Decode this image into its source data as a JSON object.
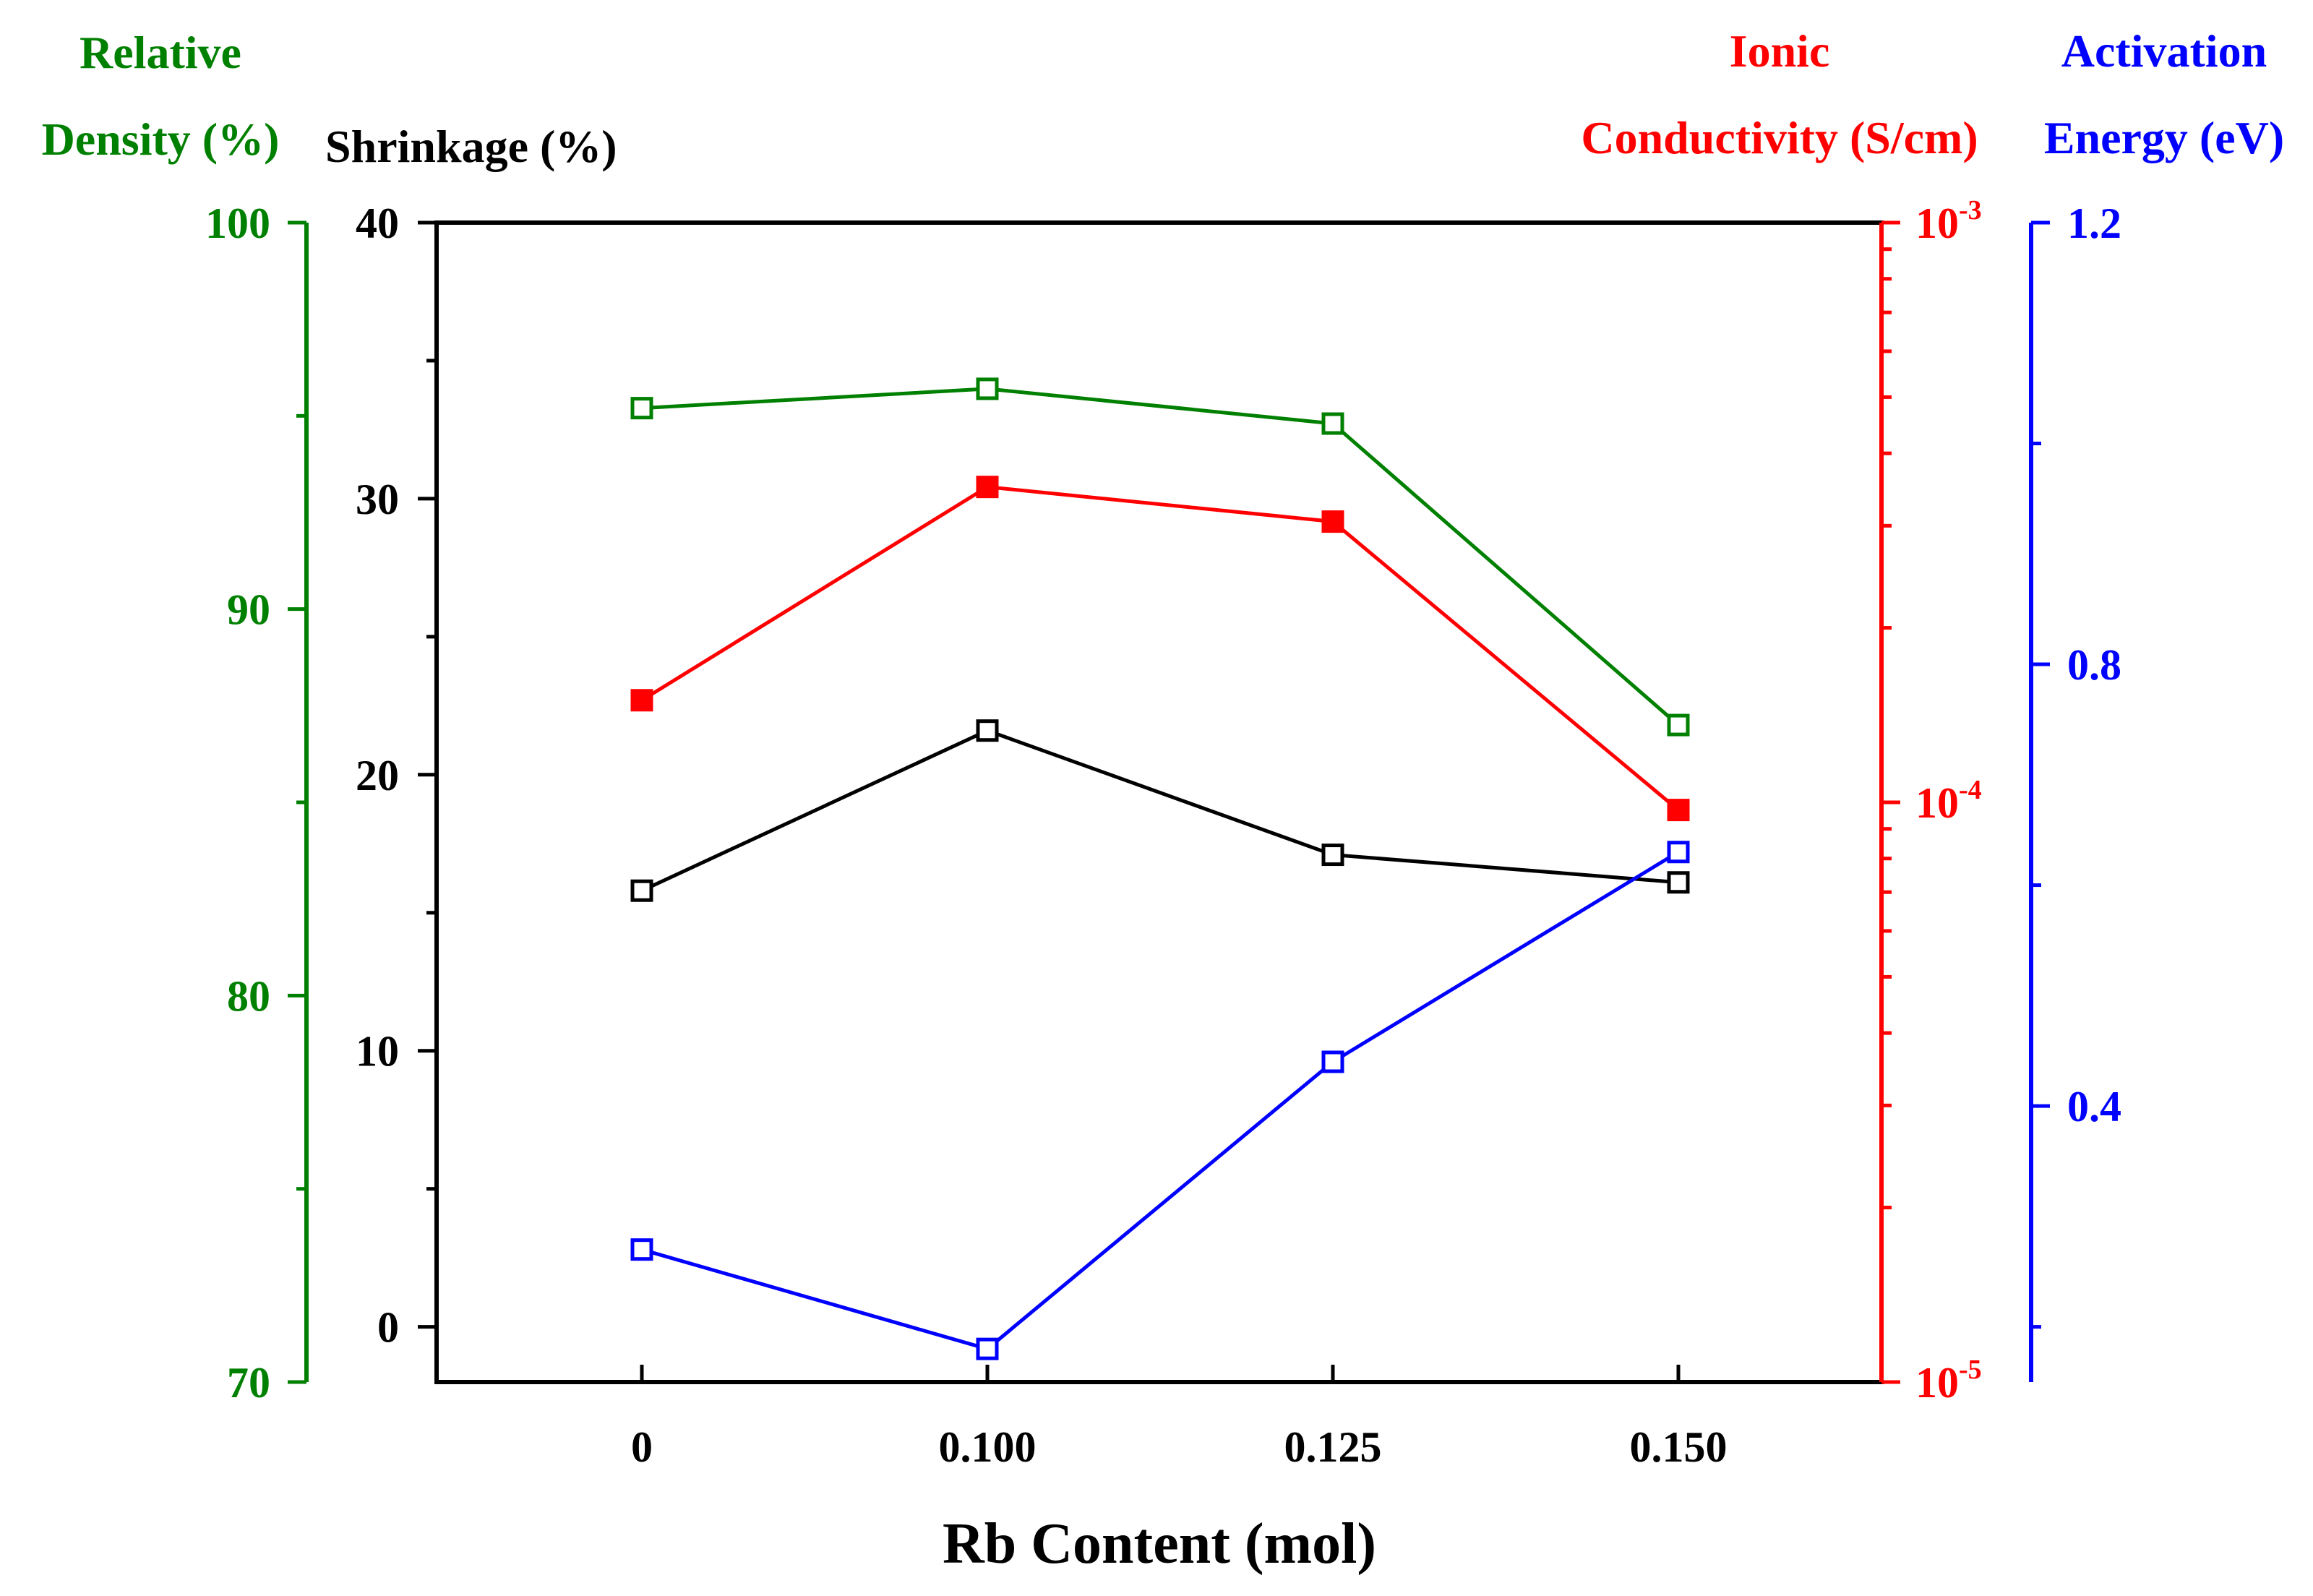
{
  "chart_data": {
    "type": "line",
    "xlabel": "Rb Content (mol)",
    "categories": [
      "0",
      "0.100",
      "0.125",
      "0.150"
    ],
    "axes": {
      "relative_density": {
        "title_line1": "Relative",
        "title_line2": "Density (%)",
        "color": "#008000",
        "ylim": [
          70,
          100
        ],
        "ticks": [
          "100",
          "90",
          "80",
          "70"
        ]
      },
      "shrinkage": {
        "title": "Shrinkage (%)",
        "color": "#000000",
        "ylim": [
          -2,
          40
        ],
        "ticks": [
          "40",
          "30",
          "20",
          "10",
          "0"
        ]
      },
      "ionic_conductivity": {
        "title_line1": "Ionic",
        "title_line2": "Conductivity (S/cm)",
        "color": "#ff0000",
        "scale": "log",
        "ylim": [
          1e-05,
          0.001
        ],
        "tick_base": "10",
        "tick_exponents": [
          "-3",
          "-4",
          "-5"
        ]
      },
      "activation_energy": {
        "title_line1": "Activation",
        "title_line2": "Energy (eV)",
        "color": "#0000ff",
        "ylim": [
          0.15,
          1.2
        ],
        "ticks": [
          "1.2",
          "0.8",
          "0.4"
        ]
      }
    },
    "series": [
      {
        "axis": "relative_density",
        "marker": "open-square",
        "values": [
          95.2,
          95.7,
          94.8,
          87.0
        ]
      },
      {
        "axis": "ionic_conductivity",
        "marker": "filled-square",
        "values": [
          0.00015,
          0.00035,
          0.000305,
          9.7e-05
        ]
      },
      {
        "axis": "shrinkage",
        "marker": "open-square",
        "values": [
          15.8,
          21.6,
          17.1,
          16.1
        ]
      },
      {
        "axis": "activation_energy",
        "marker": "open-square",
        "values": [
          0.27,
          0.18,
          0.44,
          0.63
        ]
      }
    ]
  }
}
